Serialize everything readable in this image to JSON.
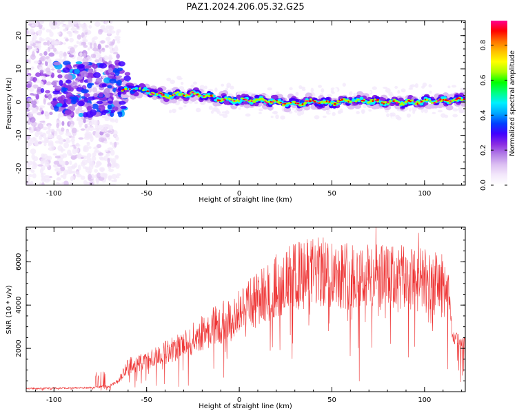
{
  "title": "PAZ1.2024.206.05.32.G25",
  "chart_data": [
    {
      "type": "heatmap",
      "xlabel": "Height of straight line (km)",
      "ylabel": "Frequency (Hz)",
      "xlim": [
        -115,
        122
      ],
      "ylim": [
        -25,
        24.5
      ],
      "xticks": [
        -100,
        -50,
        0,
        50,
        100
      ],
      "yticks": [
        -20,
        -10,
        0,
        10,
        20
      ],
      "colorbar": {
        "label": "Normalized spectral amplitude",
        "range": [
          0.0,
          0.94
        ],
        "ticks": [
          0.0,
          0.2,
          0.4,
          0.6,
          0.8
        ],
        "colors": [
          "#ffffff",
          "#f3e8fb",
          "#dcbff2",
          "#b37ee6",
          "#8a2be2",
          "#4000ff",
          "#0040ff",
          "#00a8ff",
          "#00f0ff",
          "#00ff80",
          "#00ff00",
          "#aaff00",
          "#ffff00",
          "#ffc000",
          "#ff7000",
          "#ff0000",
          "#ff0090"
        ]
      },
      "trace": [
        {
          "x": -62,
          "f": 3.5
        },
        {
          "x": -55,
          "f": 4.0
        },
        {
          "x": -48,
          "f": 3.0
        },
        {
          "x": -40,
          "f": 1.8
        },
        {
          "x": -30,
          "f": 2.5
        },
        {
          "x": -20,
          "f": 2.2
        },
        {
          "x": -10,
          "f": 0.8
        },
        {
          "x": 0,
          "f": 0.5
        },
        {
          "x": 10,
          "f": 0.6
        },
        {
          "x": 20,
          "f": 0.0
        },
        {
          "x": 30,
          "f": -0.5
        },
        {
          "x": 40,
          "f": 0.2
        },
        {
          "x": 50,
          "f": -0.3
        },
        {
          "x": 60,
          "f": 0.5
        },
        {
          "x": 70,
          "f": 0.3
        },
        {
          "x": 80,
          "f": 0.0
        },
        {
          "x": 90,
          "f": -0.2
        },
        {
          "x": 100,
          "f": 0.3
        },
        {
          "x": 110,
          "f": 0.4
        },
        {
          "x": 122,
          "f": 0.8
        }
      ]
    },
    {
      "type": "line",
      "xlabel": "Height of straight line (km)",
      "ylabel": "SNR (10 * v/v)",
      "xlim": [
        -115,
        122
      ],
      "ylim": [
        0,
        7600
      ],
      "xticks": [
        -100,
        -50,
        0,
        50,
        100
      ],
      "yticks": [
        2000,
        4000,
        6000
      ],
      "color": "#ee3333",
      "envelope": [
        {
          "x": -115,
          "snr": 150
        },
        {
          "x": -80,
          "snr": 180
        },
        {
          "x": -70,
          "snr": 250
        },
        {
          "x": -65,
          "snr": 500
        },
        {
          "x": -60,
          "snr": 1200
        },
        {
          "x": -50,
          "snr": 1400
        },
        {
          "x": -40,
          "snr": 1800
        },
        {
          "x": -30,
          "snr": 2200
        },
        {
          "x": -20,
          "snr": 2700
        },
        {
          "x": -10,
          "snr": 3200
        },
        {
          "x": 0,
          "snr": 3700
        },
        {
          "x": 10,
          "snr": 4300
        },
        {
          "x": 20,
          "snr": 4900
        },
        {
          "x": 30,
          "snr": 5300
        },
        {
          "x": 40,
          "snr": 5500
        },
        {
          "x": 50,
          "snr": 5500
        },
        {
          "x": 60,
          "snr": 5400
        },
        {
          "x": 70,
          "snr": 5300
        },
        {
          "x": 80,
          "snr": 5200
        },
        {
          "x": 90,
          "snr": 5200
        },
        {
          "x": 100,
          "snr": 5100
        },
        {
          "x": 110,
          "snr": 4900
        },
        {
          "x": 113,
          "snr": 4700
        },
        {
          "x": 115,
          "snr": 2500
        },
        {
          "x": 122,
          "snr": 2300
        }
      ]
    }
  ]
}
